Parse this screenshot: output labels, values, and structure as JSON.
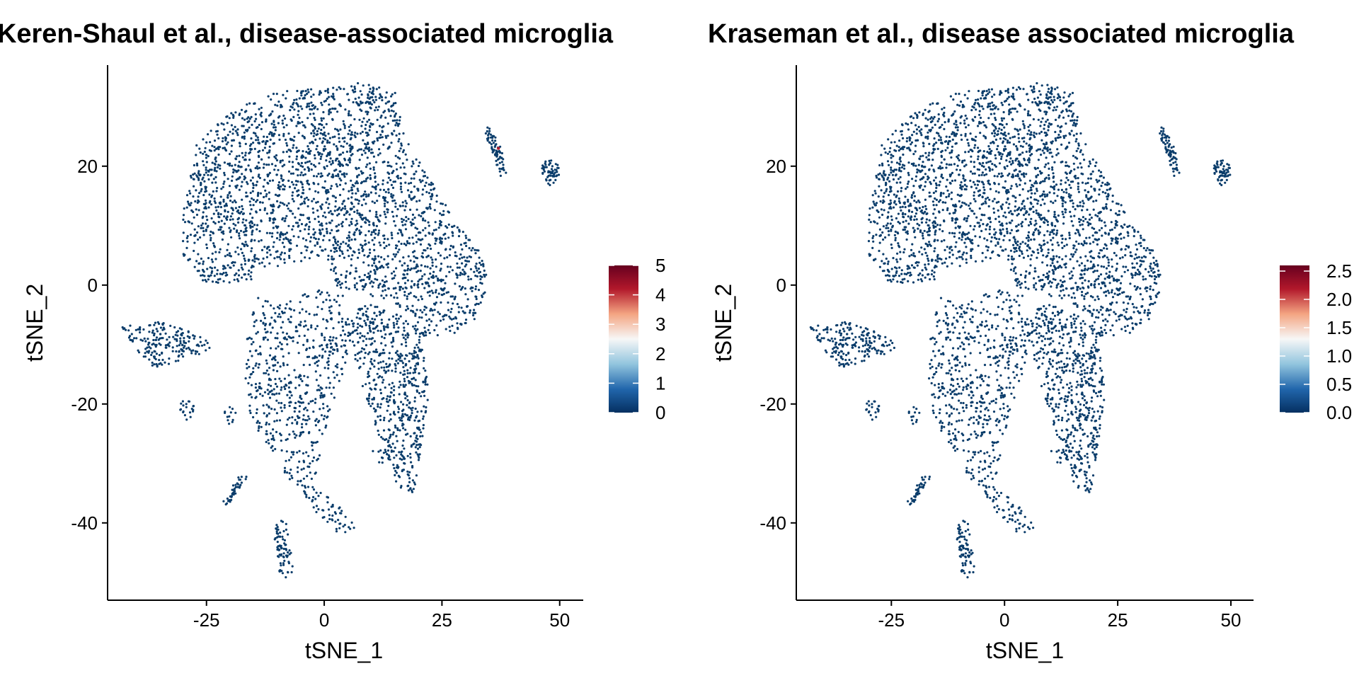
{
  "colors": {
    "low": "#053061",
    "low_mid": "#2166ac",
    "mid_low": "#92c5de",
    "mid": "#f7f7f7",
    "mid_high": "#f4a582",
    "high_mid": "#b2182b",
    "high": "#67001f",
    "point": "#0b3d6b",
    "axis": "#000000"
  },
  "chart_data": [
    {
      "type": "scatter",
      "title": "Keren-Shaul et al., disease-associated microglia",
      "xlabel": "tSNE_1",
      "ylabel": "tSNE_2",
      "xlim": [
        -46,
        55
      ],
      "ylim": [
        -53,
        37
      ],
      "xticks": [
        -25,
        0,
        25,
        50
      ],
      "xtick_labels": [
        "-25",
        "0",
        "25",
        "50"
      ],
      "yticks": [
        -40,
        -20,
        0,
        20
      ],
      "ytick_labels": [
        "-40",
        "-20",
        "0",
        "20"
      ],
      "color_scale": {
        "min": 0,
        "max": 5,
        "ticks": [
          0,
          1,
          2,
          3,
          4,
          5
        ],
        "tick_labels": [
          "0",
          "1",
          "2",
          "3",
          "4",
          "5"
        ]
      },
      "highlight_points": [
        {
          "x": 37,
          "y": 23,
          "value": 4.5
        }
      ],
      "grid": false,
      "legend": "right"
    },
    {
      "type": "scatter",
      "title": "Kraseman et al., disease associated microglia",
      "xlabel": "tSNE_1",
      "ylabel": "tSNE_2",
      "xlim": [
        -46,
        55
      ],
      "ylim": [
        -53,
        37
      ],
      "xticks": [
        -25,
        0,
        25,
        50
      ],
      "xtick_labels": [
        "-25",
        "0",
        "25",
        "50"
      ],
      "yticks": [
        -40,
        -20,
        0,
        20
      ],
      "ytick_labels": [
        "-40",
        "-20",
        "0",
        "20"
      ],
      "color_scale": {
        "min": 0,
        "max": 2.6,
        "ticks": [
          0,
          0.5,
          1,
          1.5,
          2,
          2.5
        ],
        "tick_labels": [
          "0.0",
          "0.5",
          "1.0",
          "1.5",
          "2.0",
          "2.5"
        ]
      },
      "highlight_points": [],
      "grid": false,
      "legend": "right"
    }
  ],
  "clusters": [
    {
      "kind": "poly",
      "n": 2600,
      "pts": [
        [
          -30,
          12
        ],
        [
          -27,
          24
        ],
        [
          -22,
          28
        ],
        [
          -15,
          31
        ],
        [
          -8,
          33
        ],
        [
          0,
          33
        ],
        [
          7,
          34
        ],
        [
          15,
          33
        ],
        [
          17,
          25
        ],
        [
          20,
          22
        ],
        [
          27,
          12
        ],
        [
          33,
          6
        ],
        [
          35,
          0
        ],
        [
          32,
          -6
        ],
        [
          26,
          -9
        ],
        [
          22,
          -8
        ],
        [
          18,
          -5
        ],
        [
          15,
          -3
        ],
        [
          10,
          -2
        ],
        [
          5,
          -1
        ],
        [
          2,
          0
        ],
        [
          0,
          5
        ],
        [
          -5,
          4
        ],
        [
          -10,
          3
        ],
        [
          -15,
          1
        ],
        [
          -20,
          0
        ],
        [
          -25,
          0
        ],
        [
          -30,
          5
        ]
      ]
    },
    {
      "kind": "poly",
      "n": 650,
      "pts": [
        [
          -14,
          -2
        ],
        [
          -8,
          -3
        ],
        [
          0,
          0
        ],
        [
          5,
          -2
        ],
        [
          6,
          -10
        ],
        [
          3,
          -17
        ],
        [
          0,
          -25
        ],
        [
          -2,
          -33
        ],
        [
          3,
          -37
        ],
        [
          7,
          -41
        ],
        [
          3,
          -42
        ],
        [
          -2,
          -38
        ],
        [
          -8,
          -32
        ],
        [
          -12,
          -27
        ],
        [
          -16,
          -22
        ],
        [
          -17,
          -14
        ],
        [
          -16,
          -6
        ]
      ]
    },
    {
      "kind": "poly",
      "n": 600,
      "pts": [
        [
          6,
          -4
        ],
        [
          10,
          -3
        ],
        [
          16,
          -5
        ],
        [
          22,
          -8
        ],
        [
          22,
          -20
        ],
        [
          20,
          -30
        ],
        [
          19,
          -35
        ],
        [
          16,
          -35
        ],
        [
          13,
          -28
        ],
        [
          10,
          -22
        ],
        [
          7,
          -14
        ],
        [
          5,
          -8
        ]
      ]
    },
    {
      "kind": "poly",
      "n": 190,
      "pts": [
        [
          -43,
          -7
        ],
        [
          -36,
          -6
        ],
        [
          -30,
          -7
        ],
        [
          -25,
          -9
        ],
        [
          -24,
          -11
        ],
        [
          -28,
          -12
        ],
        [
          -32,
          -13
        ],
        [
          -36,
          -14
        ],
        [
          -40,
          -11
        ]
      ]
    },
    {
      "kind": "seg",
      "n": 75,
      "a": [
        -9.5,
        -40
      ],
      "b": [
        -8,
        -48
      ],
      "w": 1.4
    },
    {
      "kind": "seg",
      "n": 40,
      "a": [
        -21,
        -37
      ],
      "b": [
        -17,
        -32
      ],
      "w": 0.6
    },
    {
      "kind": "seg",
      "n": 70,
      "a": [
        35,
        26
      ],
      "b": [
        38,
        19
      ],
      "w": 0.9
    },
    {
      "kind": "blob",
      "n": 55,
      "c": [
        48,
        19
      ],
      "r": [
        1.9,
        2.2
      ]
    },
    {
      "kind": "blob",
      "n": 20,
      "c": [
        -29,
        -21
      ],
      "r": [
        1.8,
        2.0
      ]
    },
    {
      "kind": "blob",
      "n": 12,
      "c": [
        -20,
        -22
      ],
      "r": [
        1.5,
        1.5
      ]
    },
    {
      "kind": "blob",
      "n": 10,
      "c": [
        12,
        -28
      ],
      "r": [
        2.0,
        2.0
      ]
    }
  ]
}
